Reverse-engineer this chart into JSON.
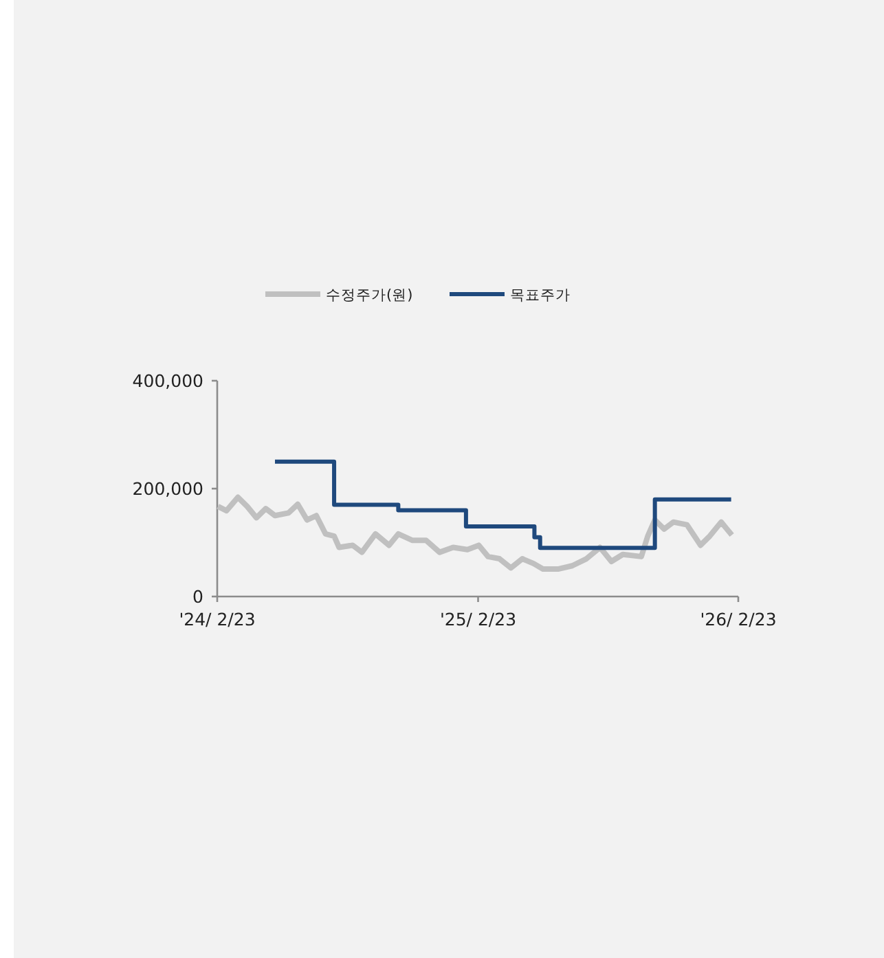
{
  "chart_data": {
    "type": "line",
    "legend": "top",
    "grid": false,
    "xlim": [
      "2024-02-23",
      "2026-02-23"
    ],
    "xticks": [
      {
        "value": "2024-02-23",
        "label": "'24/ 2/23"
      },
      {
        "value": "2025-02-23",
        "label": "'25/ 2/23"
      },
      {
        "value": "2026-02-23",
        "label": "'26/ 2/23"
      }
    ],
    "ylim": [
      0,
      400000
    ],
    "yticks": [
      0,
      {
        "value": 200000,
        "label": "200,000"
      },
      {
        "value": 400000,
        "label": "400,000"
      }
    ],
    "series": [
      {
        "name": "수정주가(원)",
        "color": "#c0c0c0",
        "x": [
          "2024-02-24",
          "2024-03-07",
          "2024-03-23",
          "2024-04-05",
          "2024-04-18",
          "2024-05-01",
          "2024-05-14",
          "2024-06-02",
          "2024-06-15",
          "2024-06-28",
          "2024-07-11",
          "2024-07-24",
          "2024-08-05",
          "2024-08-12",
          "2024-08-31",
          "2024-09-13",
          "2024-10-02",
          "2024-10-21",
          "2024-11-03",
          "2024-11-23",
          "2024-12-12",
          "2024-12-31",
          "2025-01-19",
          "2025-02-08",
          "2025-02-24",
          "2025-03-09",
          "2025-03-25",
          "2025-04-10",
          "2025-04-26",
          "2025-05-12",
          "2025-05-25",
          "2025-06-16",
          "2025-07-05",
          "2025-07-25",
          "2025-08-13",
          "2025-08-29",
          "2025-09-14",
          "2025-10-10",
          "2025-10-19",
          "2025-10-29",
          "2025-11-11",
          "2025-11-24",
          "2025-12-13",
          "2026-01-01",
          "2026-01-14",
          "2026-01-30",
          "2026-02-14"
        ],
        "values": [
          167000,
          159000,
          184000,
          167000,
          146000,
          163000,
          150000,
          155000,
          171000,
          142000,
          150000,
          116000,
          112000,
          91000,
          95000,
          82000,
          116000,
          95000,
          116000,
          104000,
          104000,
          82000,
          91000,
          87000,
          95000,
          74000,
          70000,
          53000,
          70000,
          61000,
          51000,
          51000,
          57000,
          70000,
          91000,
          65000,
          78000,
          74000,
          112000,
          142000,
          125000,
          138000,
          133000,
          95000,
          112000,
          138000,
          114000
        ]
      },
      {
        "name": "목표주가",
        "color": "#1f497d",
        "type": "step",
        "x": [
          "2024-05-14",
          "2024-08-05",
          "2024-11-03",
          "2025-02-06",
          "2025-05-13",
          "2025-05-21",
          "2025-10-29",
          "2026-02-13"
        ],
        "values": [
          250000,
          170000,
          160000,
          130000,
          110000,
          90000,
          180000,
          180000
        ]
      }
    ]
  }
}
